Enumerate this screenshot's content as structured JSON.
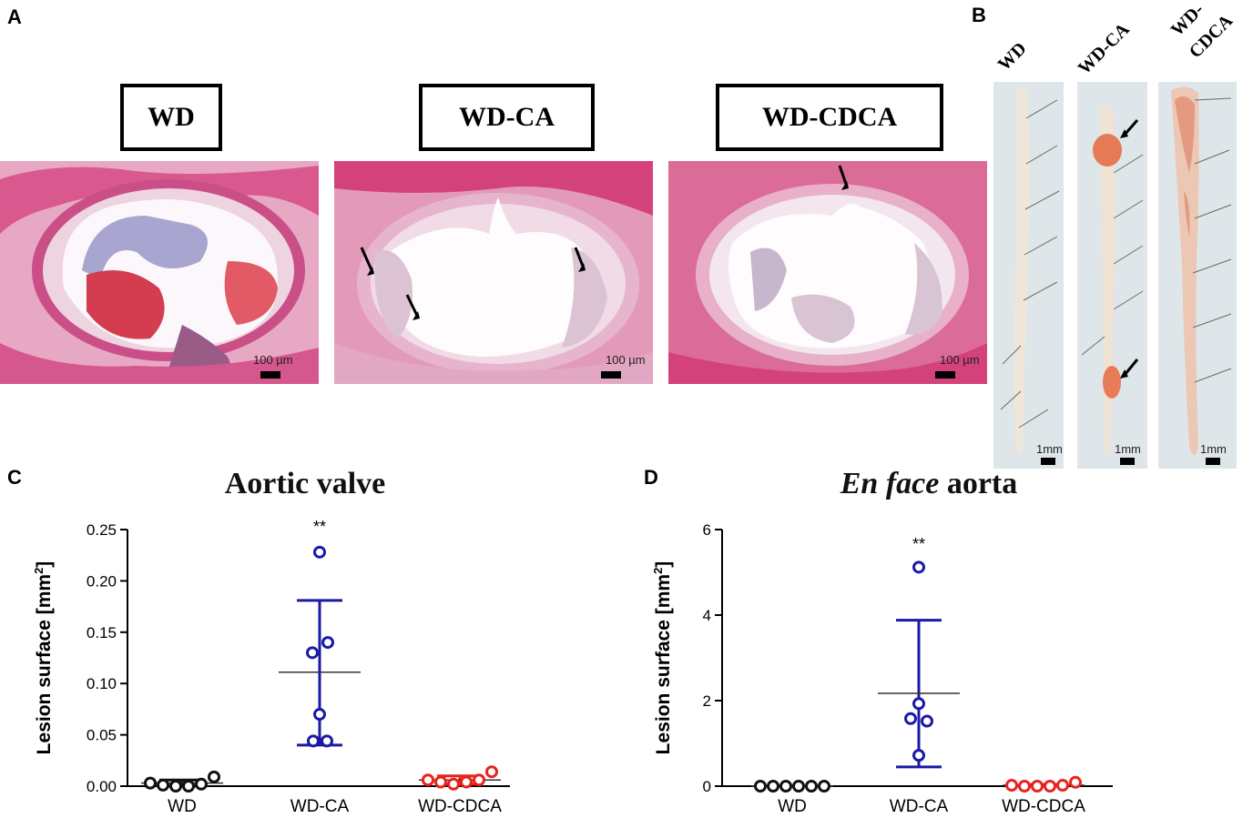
{
  "panels": {
    "a": "A",
    "b": "B",
    "c": "C",
    "d": "D"
  },
  "histology": {
    "groups": [
      "WD",
      "WD-CA",
      "WD-CDCA"
    ],
    "scale_label": "100 µm"
  },
  "aorta_strips": {
    "groups": [
      "WD",
      "WD-CA",
      "WD-CDCA"
    ],
    "group3_line1": "WD-",
    "group3_line2": "CDCA",
    "scale_label": "1mm"
  },
  "colors": {
    "WD": "#111111",
    "WD-CA": "#1a1aa6",
    "WD-CDCA": "#e8231e"
  },
  "chart_data": [
    {
      "type": "scatter",
      "title": "Aortic valve",
      "ylabel": "Lesion surface [mm²]",
      "ylabel_main": "Lesion surface [mm",
      "ylabel_sup": "2",
      "ylabel_end": "]",
      "categories": [
        "WD",
        "WD-CA",
        "WD-CDCA"
      ],
      "ylim": [
        0,
        0.25
      ],
      "yticks": [
        "0.00",
        "0.05",
        "0.10",
        "0.15",
        "0.20",
        "0.25"
      ],
      "ytick_values": [
        0,
        0.05,
        0.1,
        0.15,
        0.2,
        0.25
      ],
      "significance": "**",
      "significance_group": "WD-CA",
      "series": [
        {
          "group": "WD",
          "points": [
            0.003,
            0.001,
            0.0,
            0.0,
            0.002,
            0.009
          ],
          "mean": 0.003,
          "sd_low": 0.0,
          "sd_high": 0.006
        },
        {
          "group": "WD-CA",
          "points": [
            0.228,
            0.14,
            0.13,
            0.07,
            0.044,
            0.044
          ],
          "mean": 0.111,
          "sd_low": 0.04,
          "sd_high": 0.181
        },
        {
          "group": "WD-CDCA",
          "points": [
            0.006,
            0.004,
            0.002,
            0.004,
            0.006,
            0.014
          ],
          "mean": 0.006,
          "sd_low": 0.002,
          "sd_high": 0.01
        }
      ]
    },
    {
      "type": "scatter",
      "title_italic": "En face",
      "title_rest": " aorta",
      "ylabel": "Lesion surface [mm²]",
      "ylabel_main": "Lesion surface [mm",
      "ylabel_sup": "2",
      "ylabel_end": "]",
      "categories": [
        "WD",
        "WD-CA",
        "WD-CDCA"
      ],
      "ylim": [
        0,
        6
      ],
      "yticks": [
        "0",
        "2",
        "4",
        "6"
      ],
      "ytick_values": [
        0,
        2,
        4,
        6
      ],
      "significance": "**",
      "significance_group": "WD-CA",
      "series": [
        {
          "group": "WD",
          "points": [
            0,
            0,
            0,
            0,
            0,
            0
          ],
          "mean": 0,
          "sd_low": 0,
          "sd_high": 0
        },
        {
          "group": "WD-CA",
          "points": [
            5.12,
            1.93,
            1.58,
            1.52,
            0.72
          ],
          "mean": 2.17,
          "sd_low": 0.45,
          "sd_high": 3.88
        },
        {
          "group": "WD-CDCA",
          "points": [
            0.02,
            0.0,
            0.0,
            0.0,
            0.02,
            0.09
          ],
          "mean": 0.02,
          "sd_low": 0.0,
          "sd_high": 0.04
        }
      ]
    }
  ]
}
